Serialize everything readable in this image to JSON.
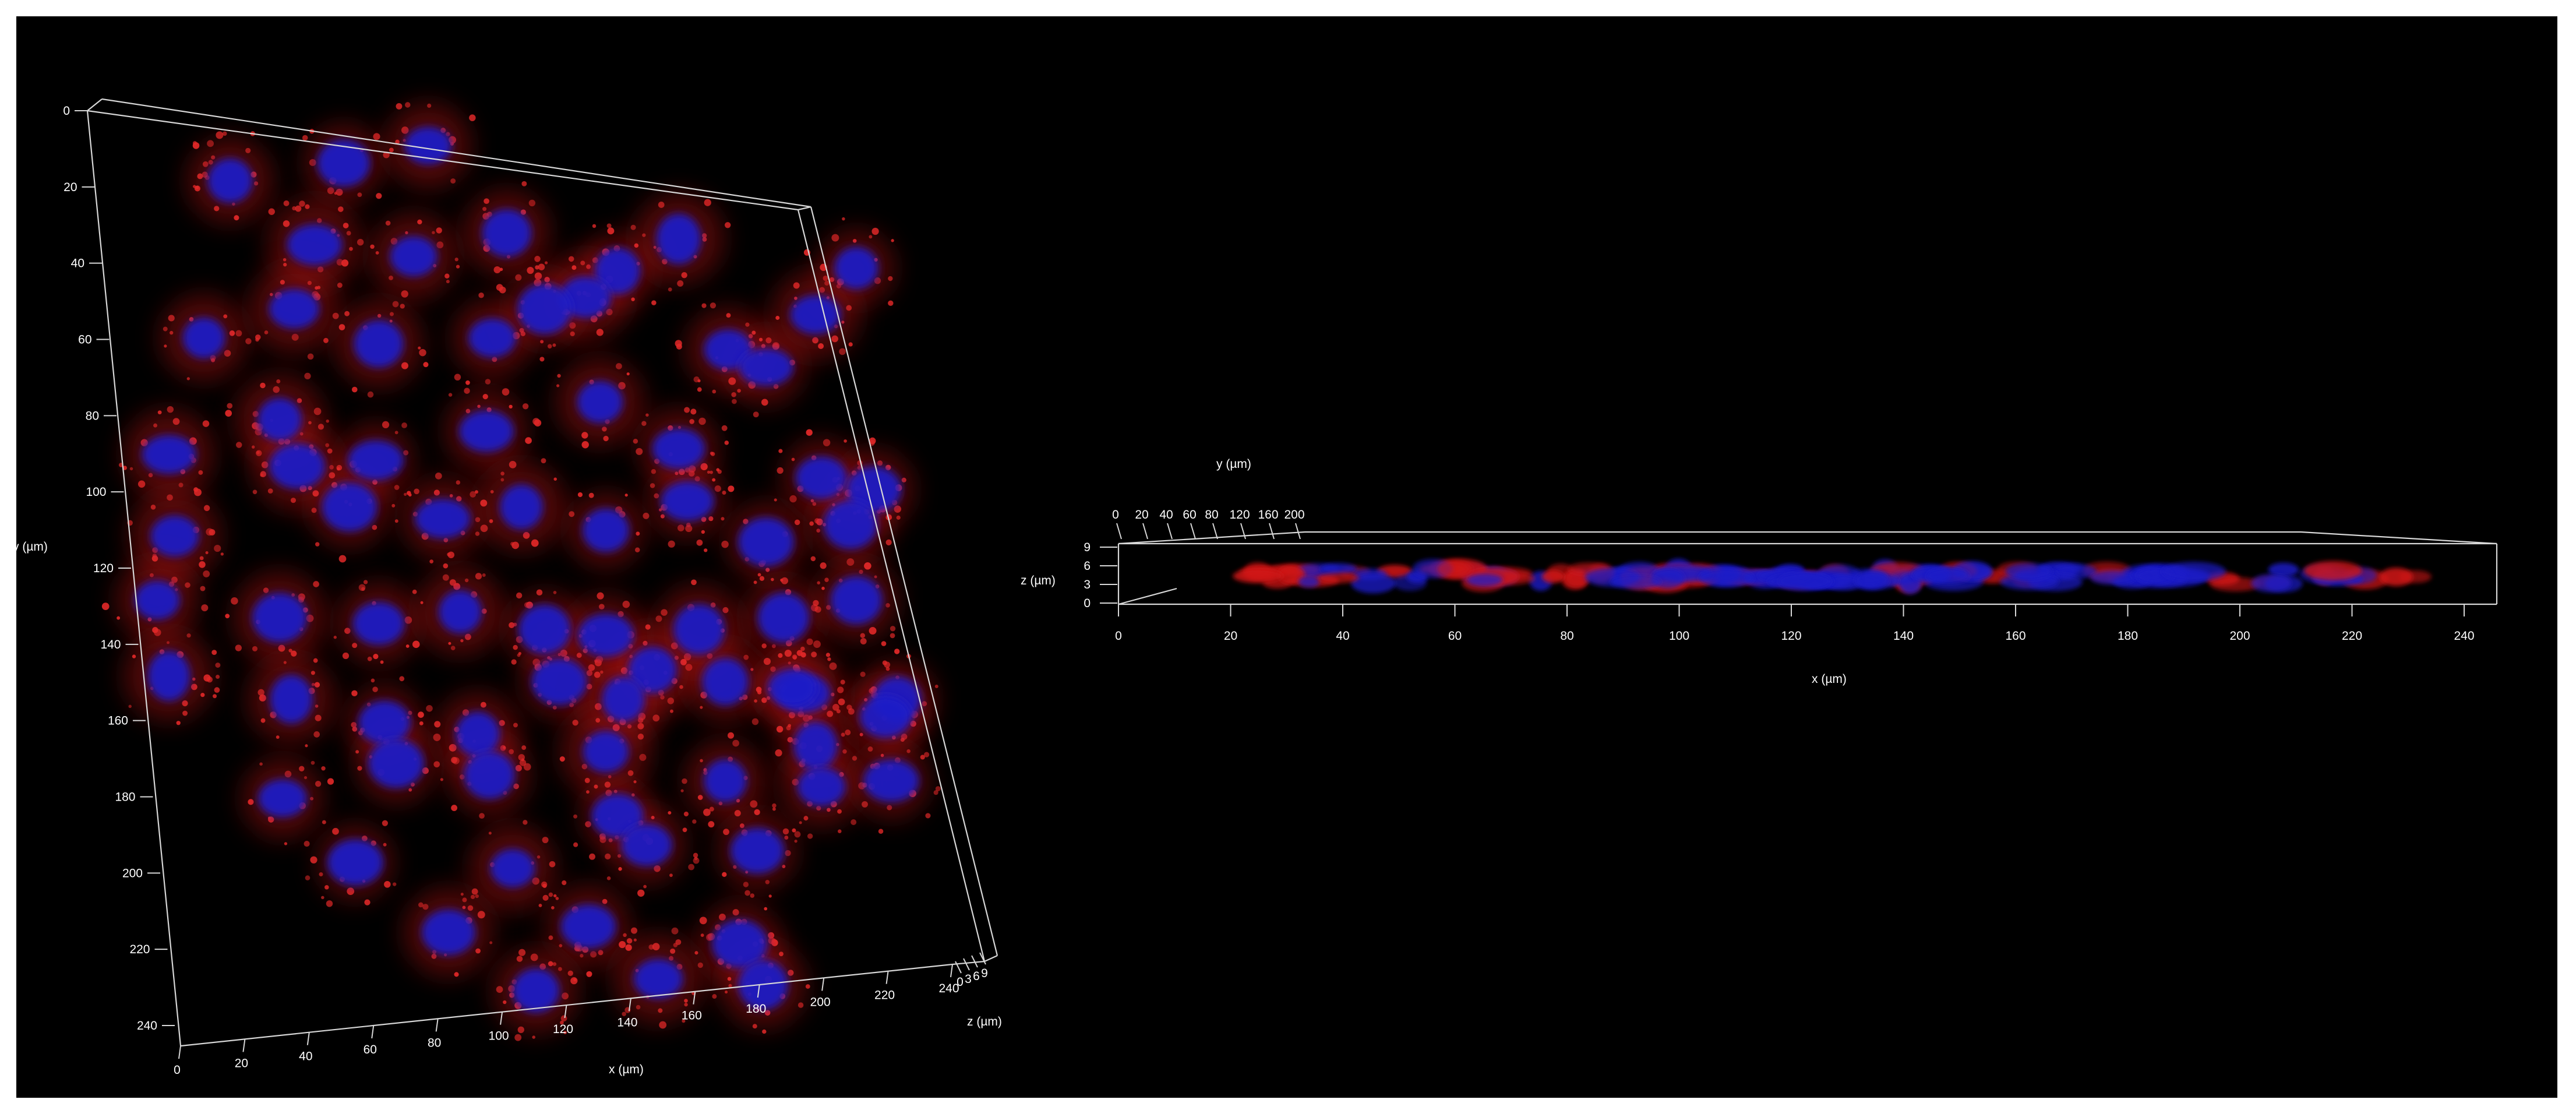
{
  "view_3d": {
    "y_axis": {
      "label": "y (µm)",
      "ticks": [
        "0",
        "20",
        "40",
        "60",
        "80",
        "100",
        "120",
        "140",
        "160",
        "180",
        "200",
        "220",
        "240"
      ]
    },
    "x_axis": {
      "label": "x (µm)",
      "ticks": [
        "0",
        "20",
        "40",
        "60",
        "80",
        "100",
        "120",
        "140",
        "160",
        "180",
        "200",
        "220",
        "240"
      ]
    },
    "z_axis": {
      "label": "z (µm)",
      "ticks": [
        "0",
        "3",
        "6",
        "9"
      ]
    }
  },
  "view_side": {
    "y_axis": {
      "label": "y (µm)",
      "ticks": [
        "0",
        "20",
        "40",
        "60",
        "80",
        "120",
        "160",
        "200"
      ]
    },
    "z_axis": {
      "label": "z (µm)",
      "ticks": [
        "0",
        "3",
        "6",
        "9"
      ]
    },
    "x_axis": {
      "label": "x (µm)",
      "ticks": [
        "0",
        "20",
        "40",
        "60",
        "80",
        "100",
        "120",
        "140",
        "160",
        "180",
        "200",
        "220",
        "240"
      ]
    }
  },
  "colors": {
    "background": "#000000",
    "nuclei": "#1c1cc8",
    "cytoplasm": "#d01818",
    "axis": "#d8d8d8"
  }
}
